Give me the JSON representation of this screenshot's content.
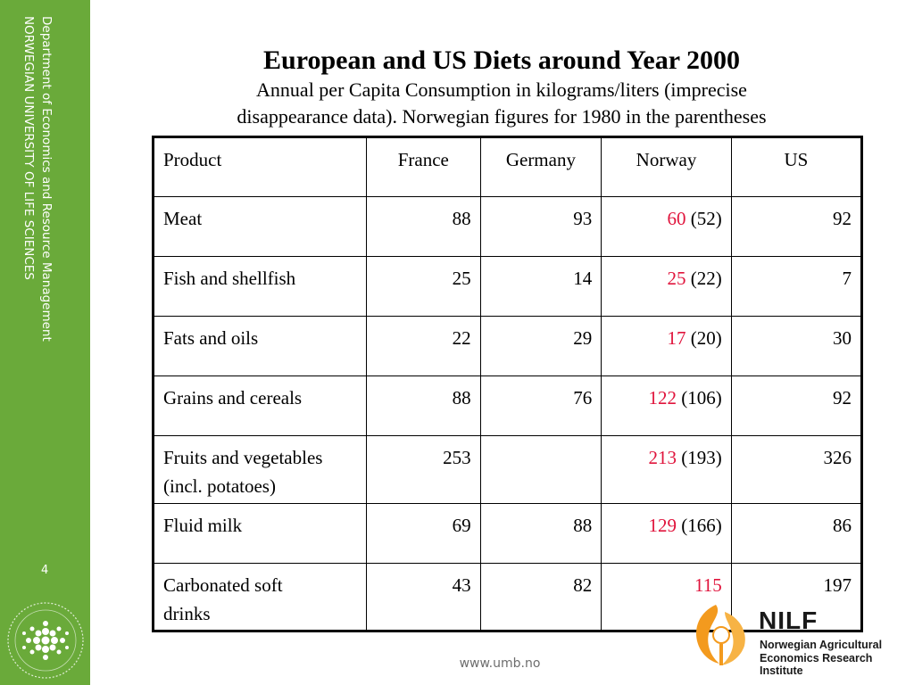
{
  "sidebar": {
    "department": "Department of Economics and Resource Management",
    "university": "NORWEGIAN UNIVERSITY OF LIFE SCIENCES",
    "page_number": "4"
  },
  "slide": {
    "title": "European and US Diets around Year 2000",
    "subtitle_line1": "Annual per Capita Consumption in kilograms/liters (imprecise",
    "subtitle_line2": "disappearance data). Norwegian figures for 1980 in the parentheses"
  },
  "table": {
    "headers": [
      "Product",
      "France",
      "Germany",
      "Norway",
      "US"
    ],
    "rows": [
      {
        "product": "Meat",
        "france": "88",
        "germany": "93",
        "norway": "60",
        "norway_1980": "(52)",
        "us": "92"
      },
      {
        "product": "Fish and shellfish",
        "france": "25",
        "germany": "14",
        "norway": "25",
        "norway_1980": "(22)",
        "us": "7"
      },
      {
        "product": "Fats and oils",
        "france": "22",
        "germany": "29",
        "norway": "17",
        "norway_1980": "(20)",
        "us": "30"
      },
      {
        "product": "Grains and cereals",
        "france": "88",
        "germany": "76",
        "norway": "122",
        "norway_1980": "(106)",
        "us": "92"
      },
      {
        "product_line1": "Fruits and vegetables",
        "product_line2": "(incl. potatoes)",
        "france": "253",
        "germany": "",
        "norway": "213",
        "norway_1980": "(193)",
        "us": "326"
      },
      {
        "product": "Fluid milk",
        "france": "69",
        "germany": "88",
        "norway": "129",
        "norway_1980": "(166)",
        "us": "86"
      },
      {
        "product_line1": "Carbonated soft",
        "product_line2": "drinks",
        "france": "43",
        "germany": "82",
        "norway": "115",
        "norway_1980": "",
        "us": "197"
      }
    ],
    "norway_2000_color": "#e0143c"
  },
  "footer": {
    "url": "www.umb.no"
  },
  "logo": {
    "name": "NILF",
    "line1": "Norwegian Agricultural",
    "line2": "Economics Research Institute",
    "icon": "nilf-flame-icon",
    "accent_color": "#f39a1e"
  },
  "seal": {
    "icon": "umb-seal-icon"
  }
}
